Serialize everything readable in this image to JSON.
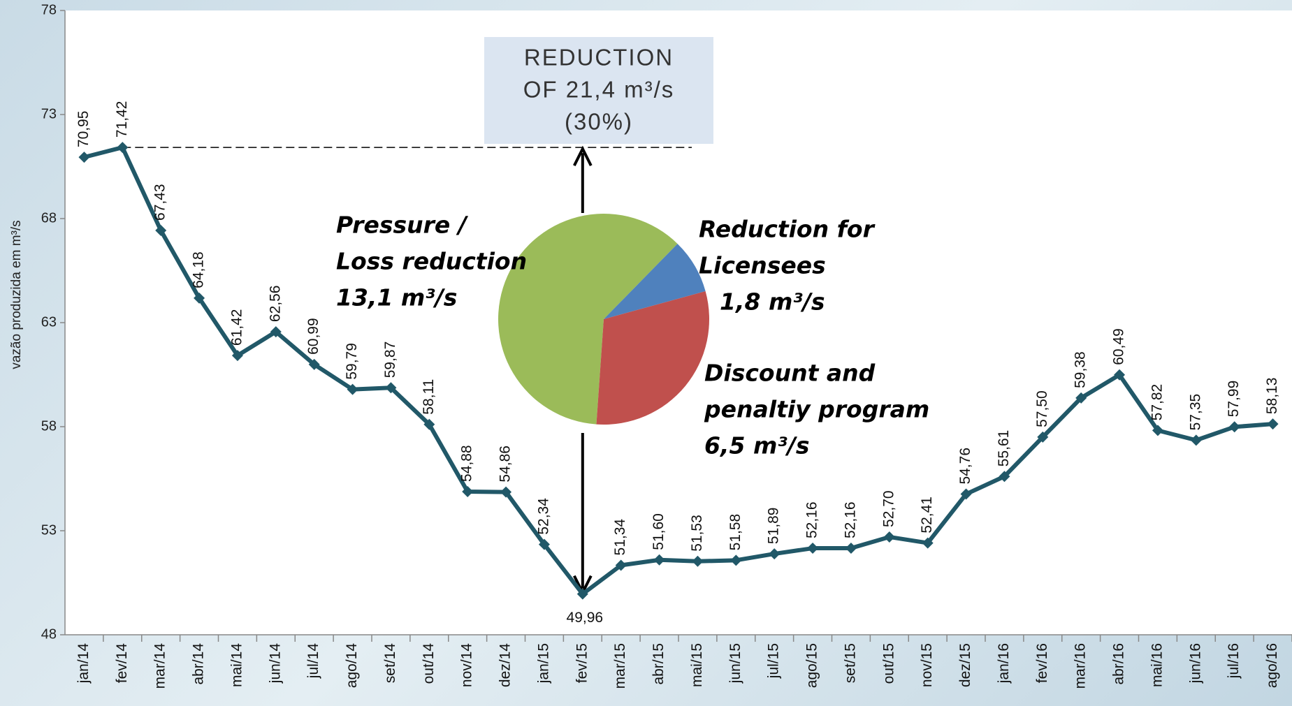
{
  "chart_data": [
    {
      "type": "line",
      "y_label": "vazão produzida em m³/s",
      "categories": [
        "jan/14",
        "fev/14",
        "mar/14",
        "abr/14",
        "mai/14",
        "jun/14",
        "jul/14",
        "ago/14",
        "set/14",
        "out/14",
        "nov/14",
        "dez/14",
        "jan/15",
        "fev/15",
        "mar/15",
        "abr/15",
        "mai/15",
        "jun/15",
        "jul/15",
        "ago/15",
        "set/15",
        "out/15",
        "nov/15",
        "dez/15",
        "jan/16",
        "fev/16",
        "mar/16",
        "abr/16",
        "mai/16",
        "jun/16",
        "jul/16",
        "ago/16"
      ],
      "values": [
        70.95,
        71.42,
        67.43,
        64.18,
        61.42,
        62.56,
        60.99,
        59.79,
        59.87,
        58.11,
        54.88,
        54.86,
        52.34,
        49.96,
        51.34,
        51.6,
        51.53,
        51.58,
        51.89,
        52.16,
        52.16,
        52.7,
        52.41,
        54.76,
        55.61,
        57.5,
        59.38,
        60.49,
        57.82,
        57.35,
        57.99,
        58.13
      ],
      "value_labels": [
        "70,95",
        "71,42",
        "67,43",
        "64,18",
        "61,42",
        "62,56",
        "60,99",
        "59,79",
        "59,87",
        "58,11",
        "54,88",
        "54,86",
        "52,34",
        "49,96",
        "51,34",
        "51,60",
        "51,53",
        "51,58",
        "51,89",
        "52,16",
        "52,16",
        "52,70",
        "52,41",
        "54,76",
        "55,61",
        "57,50",
        "59,38",
        "60,49",
        "57,82",
        "57,35",
        "57,99",
        "58,13"
      ],
      "color": "#215868",
      "ylim": [
        48,
        78
      ],
      "yticks": [
        48,
        53,
        58,
        63,
        68,
        73,
        78
      ],
      "annotation": [
        "REDUCTION",
        "OF 21,4 m³/s",
        "(30%)"
      ]
    },
    {
      "type": "pie",
      "categories": [
        [
          "Pressure /",
          "Loss reduction"
        ],
        [
          "Reduction for",
          "Licensees"
        ],
        [
          "Discount and",
          "penaltiy program"
        ]
      ],
      "values": [
        13.1,
        1.8,
        6.5
      ],
      "value_labels": [
        "13,1 m³/s",
        "1,8 m³/s",
        "6,5 m³/s"
      ],
      "colors": [
        "#9bbb59",
        "#4f81bd",
        "#c0504d"
      ]
    }
  ]
}
